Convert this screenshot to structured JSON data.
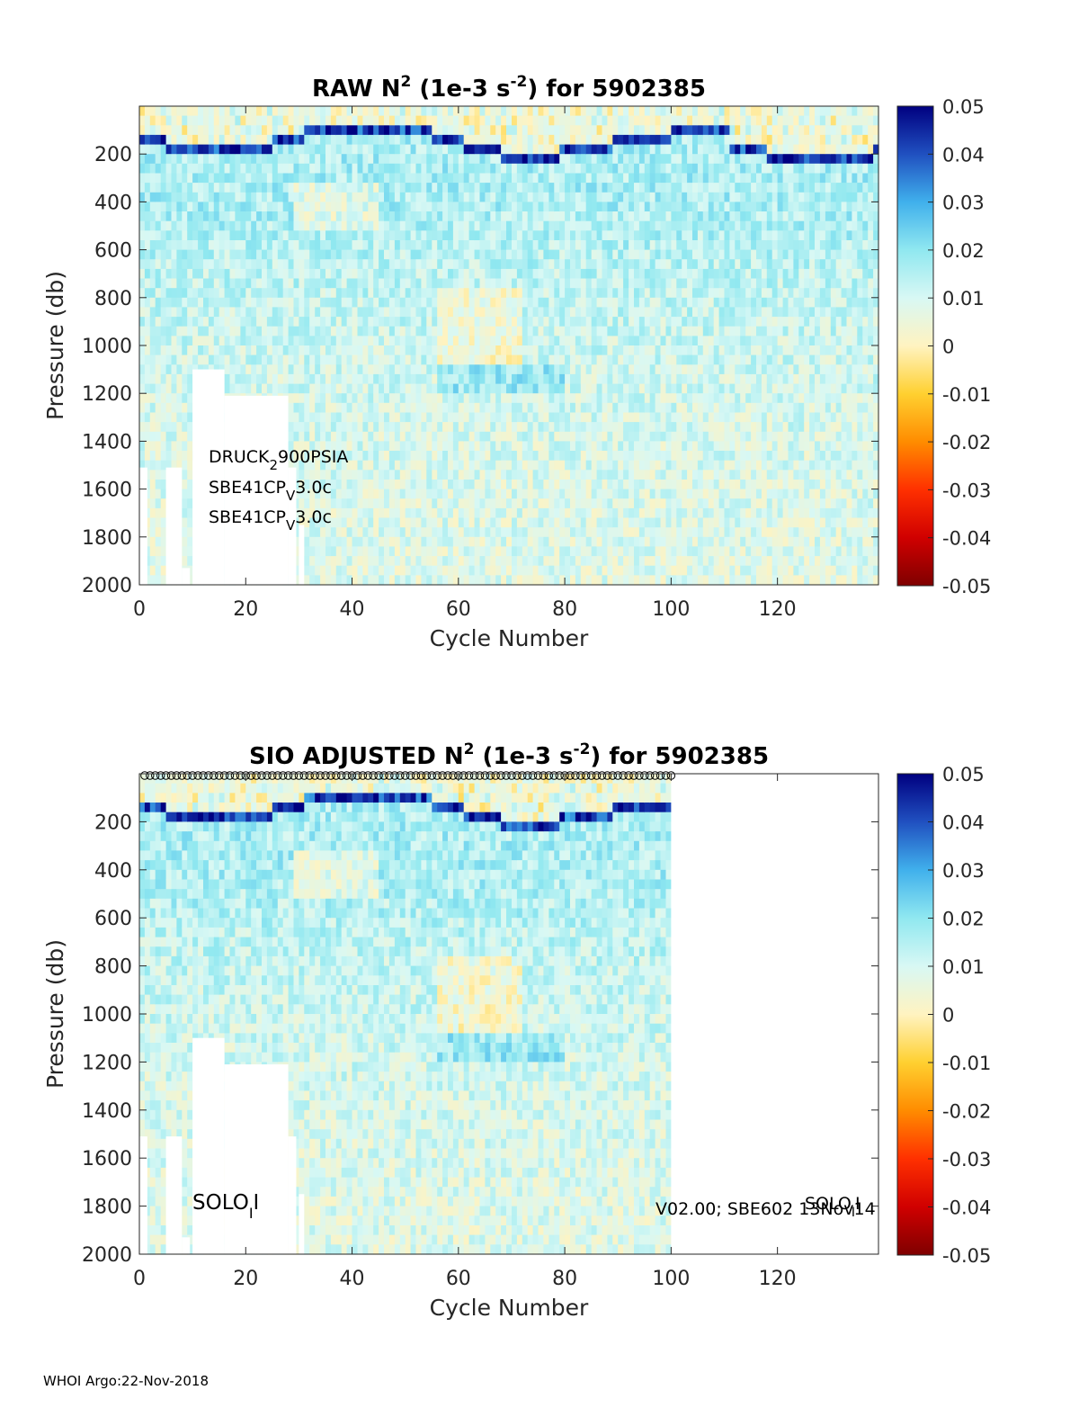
{
  "footer": "WHOI Argo:22-Nov-2018",
  "colors": {
    "colormap": [
      "#7f0000",
      "#d00000",
      "#ff3000",
      "#ff8c00",
      "#ffd030",
      "#fff3c0",
      "#d8f8f4",
      "#90e8f0",
      "#40b0ec",
      "#2050c0",
      "#000080"
    ],
    "mask": "#ffffff",
    "axis": "#262626"
  },
  "chart_data": [
    {
      "type": "heatmap",
      "title_main": "RAW N",
      "title_sup": "2",
      "title_mid": " (1e-3 s",
      "title_sup2": "-2",
      "title_end": ") for 5902385",
      "xlabel": "Cycle Number",
      "ylabel": "Pressure (db)",
      "xlim": [
        0,
        139
      ],
      "ylim": [
        0,
        2000
      ],
      "y_reversed": true,
      "x_ticks": [
        "0",
        "20",
        "40",
        "60",
        "80",
        "100",
        "120"
      ],
      "y_ticks": [
        "200",
        "400",
        "600",
        "800",
        "1000",
        "1200",
        "1400",
        "1600",
        "1800",
        "2000"
      ],
      "colorbar_range": [
        -0.05,
        0.05
      ],
      "colorbar_ticks": [
        "0.05",
        "0.04",
        "0.03",
        "0.02",
        "0.01",
        "0",
        "-0.01",
        "-0.02",
        "-0.03",
        "-0.04",
        "-0.05"
      ],
      "data_cycles": [
        0,
        139
      ],
      "annotations": [
        {
          "base": "DRUCK",
          "sub": "2",
          "rest": "900PSIA"
        },
        {
          "base": "SBE41CP",
          "sub": "V",
          "rest": "3.0c"
        },
        {
          "base": "SBE41CP",
          "sub": "V",
          "rest": "3.0c"
        }
      ]
    },
    {
      "type": "heatmap",
      "title_main": "SIO  ADJUSTED N",
      "title_sup": "2",
      "title_mid": " (1e-3 s",
      "title_sup2": "-2",
      "title_end": ") for 5902385",
      "xlabel": "Cycle Number",
      "ylabel": "Pressure (db)",
      "xlim": [
        0,
        139
      ],
      "ylim": [
        0,
        2000
      ],
      "y_reversed": true,
      "x_ticks": [
        "0",
        "20",
        "40",
        "60",
        "80",
        "100",
        "120"
      ],
      "y_ticks": [
        "200",
        "400",
        "600",
        "800",
        "1000",
        "1200",
        "1400",
        "1600",
        "1800",
        "2000"
      ],
      "colorbar_range": [
        -0.05,
        0.05
      ],
      "colorbar_ticks": [
        "0.05",
        "0.04",
        "0.03",
        "0.02",
        "0.01",
        "0",
        "-0.01",
        "-0.02",
        "-0.03",
        "-0.04",
        "-0.05"
      ],
      "data_cycles": [
        0,
        100
      ],
      "annotations_left": {
        "base": "SOLO",
        "sub": "I",
        "rest": "I"
      },
      "annotations_right": [
        {
          "text": "V02.00; SBE602 13Nov14"
        },
        {
          "base": "SOLO",
          "sub": "I",
          "rest": "I"
        }
      ],
      "surface_markers": "circles along top edge, cycles 1 to 100"
    }
  ]
}
